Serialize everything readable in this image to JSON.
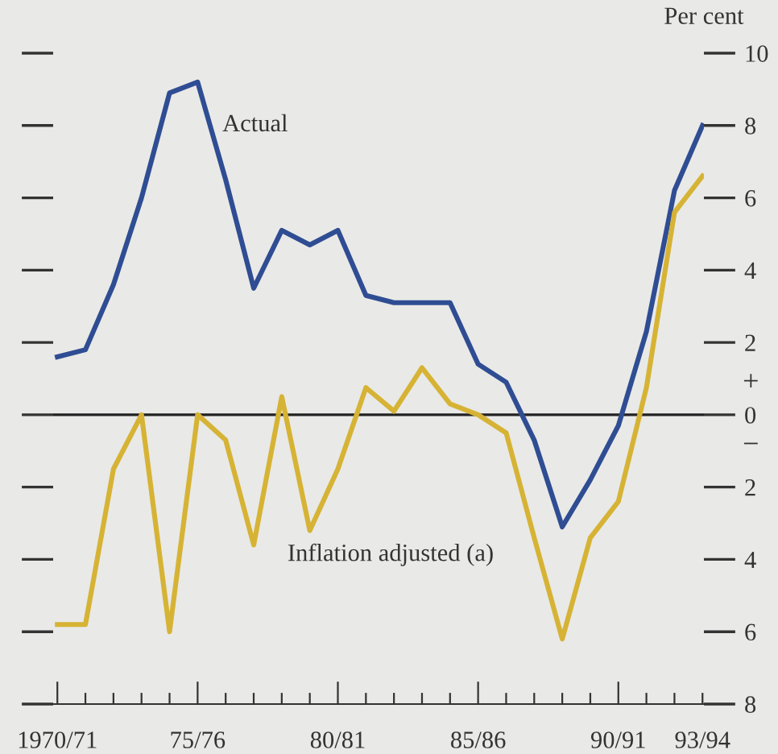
{
  "chart_data": {
    "type": "line",
    "ylabel": "Per cent",
    "categories": [
      "1970/71",
      null,
      null,
      null,
      null,
      "75/76",
      null,
      null,
      null,
      null,
      "80/81",
      null,
      null,
      null,
      null,
      "85/86",
      null,
      null,
      null,
      null,
      "90/91",
      null,
      null,
      "93/94"
    ],
    "series": [
      {
        "name": "Actual",
        "color": "#2f4d93",
        "values": [
          1.6,
          1.8,
          3.6,
          6.0,
          8.9,
          9.2,
          6.5,
          3.5,
          5.1,
          4.7,
          5.1,
          3.3,
          3.1,
          3.1,
          3.1,
          1.4,
          0.9,
          -0.7,
          -3.1,
          -1.8,
          -0.3,
          2.3,
          6.2,
          8.0
        ]
      },
      {
        "name": "Inflation adjusted (a)",
        "color": "#d6b334",
        "values": [
          -5.8,
          -5.8,
          -1.5,
          0,
          -6.0,
          0,
          -0.7,
          -3.6,
          0.5,
          -3.2,
          -1.5,
          0.75,
          0.1,
          1.3,
          0.3,
          0,
          -0.5,
          -3.4,
          -6.2,
          -3.4,
          -2.4,
          0.75,
          5.6,
          6.6
        ]
      }
    ],
    "ylim": [
      -8,
      10
    ],
    "yticks": [
      {
        "value": -8,
        "label": "8"
      },
      {
        "value": -6,
        "label": "6"
      },
      {
        "value": -4,
        "label": "4"
      },
      {
        "value": -2,
        "label": "2"
      },
      0,
      2,
      4,
      6,
      8,
      10
    ],
    "ref_lines": [
      {
        "axis": "y",
        "value": 0,
        "color": "#222222"
      }
    ],
    "annotations": [
      "+",
      "−"
    ],
    "legend": false,
    "grid": false,
    "marker": "none",
    "line_style": "solid"
  }
}
